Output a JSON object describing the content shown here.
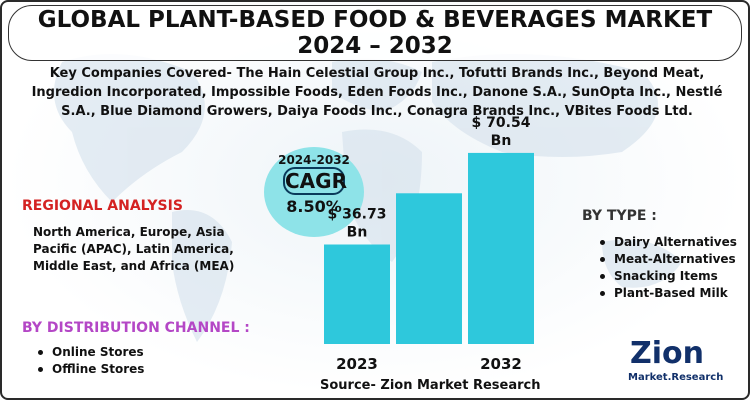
{
  "title": {
    "line1": "GLOBAL PLANT-BASED FOOD & BEVERAGES MARKET",
    "line2": "2024 – 2032"
  },
  "companies": "Key Companies Covered- The Hain Celestial Group Inc., Tofutti Brands Inc., Beyond Meat, Ingredion Incorporated, Impossible Foods, Eden Foods Inc., Danone S.A., SunOpta Inc., Nestlé S.A., Blue Diamond Growers, Daiya Foods Inc., Conagra Brands Inc., VBites Foods Ltd.",
  "cagr": {
    "years": "2024-2032",
    "label": "CAGR",
    "value": "8.50%"
  },
  "regional": {
    "title": "REGIONAL ANALYSIS",
    "text": "North America, Europe, Asia Pacific (APAC), Latin America, Middle East, and Africa (MEA)"
  },
  "distribution": {
    "title": "BY DISTRIBUTION CHANNEL :",
    "items": [
      "Online Stores",
      "Offline Stores"
    ]
  },
  "by_type": {
    "title": "BY TYPE :",
    "items": [
      "Dairy Alternatives",
      "Meat-Alternatives",
      "Snacking Items",
      "Plant-Based Milk"
    ]
  },
  "source": "Source- Zion Market Research",
  "logo": {
    "name": "Zion",
    "subtitle": "Market.Research"
  },
  "colors": {
    "bar": "#2ec8dc",
    "cagr_circle": "#8ee3e8",
    "regional_title": "#d42222",
    "distribution_title": "#b447c6",
    "logo": "#11306a"
  },
  "chart_data": {
    "type": "bar",
    "categories": [
      "2023",
      "",
      "2032"
    ],
    "values": [
      36.73,
      null,
      70.54
    ],
    "data_labels": [
      "$ 36.73 Bn",
      "",
      "$ 70.54 Bn"
    ],
    "ylim": [
      0,
      80
    ]
  }
}
